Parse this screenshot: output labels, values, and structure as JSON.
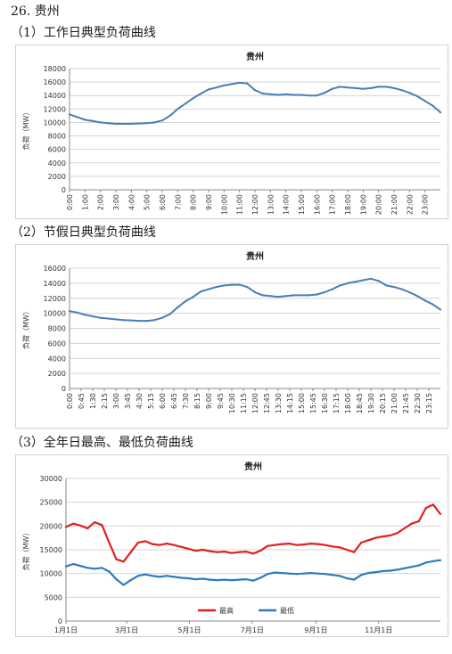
{
  "section_heading": "26. 贵州",
  "chart_captions": [
    "（1）工作日典型负荷曲线",
    "（2）节假日典型负荷曲线",
    "（3）全年日最高、最低负荷曲线"
  ],
  "colors": {
    "workday_line": "#4a7eb5",
    "holiday_line": "#4a7eb5",
    "annual_max": "#e02020",
    "annual_min": "#2b7bbf",
    "grid": "#d4d4d4"
  },
  "chart_data": [
    {
      "type": "line",
      "title": "贵州",
      "ylabel": "负荷（MW）",
      "xlabel": "",
      "ylim": [
        0,
        18000
      ],
      "yticks": [
        0,
        2000,
        4000,
        6000,
        8000,
        10000,
        12000,
        14000,
        16000,
        18000
      ],
      "xlim": [
        0,
        24
      ],
      "xtick_labels": [
        "0:00",
        "1:00",
        "2:00",
        "3:00",
        "4:00",
        "5:00",
        "6:00",
        "7:00",
        "8:00",
        "9:00",
        "10:00",
        "11:00",
        "12:00",
        "13:00",
        "14:00",
        "15:00",
        "16:00",
        "17:00",
        "18:00",
        "19:00",
        "20:00",
        "21:00",
        "22:00",
        "23:00"
      ],
      "grid": "horizontal",
      "legend": "none",
      "series": [
        {
          "x": [
            0,
            0.5,
            1,
            1.5,
            2,
            2.5,
            3,
            3.5,
            4,
            4.5,
            5,
            5.5,
            6,
            6.5,
            7,
            7.5,
            8,
            8.5,
            9,
            9.5,
            10,
            10.5,
            11,
            11.5,
            12,
            12.5,
            13,
            13.5,
            14,
            14.5,
            15,
            15.5,
            16,
            16.5,
            17,
            17.5,
            18,
            18.5,
            19,
            19.5,
            20,
            20.5,
            21,
            21.5,
            22,
            22.5,
            23,
            23.5,
            24
          ],
          "y": [
            11200,
            10800,
            10400,
            10200,
            10000,
            9900,
            9800,
            9800,
            9800,
            9850,
            9900,
            10000,
            10300,
            11000,
            12000,
            12800,
            13600,
            14300,
            14900,
            15200,
            15500,
            15700,
            15900,
            15800,
            14800,
            14300,
            14200,
            14100,
            14200,
            14100,
            14100,
            14000,
            14000,
            14400,
            15000,
            15300,
            15200,
            15100,
            15000,
            15100,
            15300,
            15300,
            15100,
            14800,
            14400,
            13900,
            13200,
            12500,
            11500
          ]
        }
      ]
    },
    {
      "type": "line",
      "title": "贵州",
      "ylabel": "负荷（MW）",
      "xlabel": "",
      "ylim": [
        0,
        16000
      ],
      "yticks": [
        0,
        2000,
        4000,
        6000,
        8000,
        10000,
        12000,
        14000,
        16000
      ],
      "xlim": [
        0,
        24
      ],
      "xtick_labels": [
        "0:00",
        "0:45",
        "1:30",
        "2:15",
        "3:00",
        "3:45",
        "4:30",
        "5:15",
        "6:00",
        "6:45",
        "7:30",
        "8:15",
        "9:00",
        "9:45",
        "10:30",
        "11:15",
        "12:00",
        "12:45",
        "13:30",
        "14:15",
        "15:00",
        "15:45",
        "16:30",
        "17:15",
        "18:00",
        "18:45",
        "19:30",
        "20:15",
        "21:00",
        "21:45",
        "22:30",
        "23:15"
      ],
      "grid": "horizontal",
      "legend": "none",
      "series": [
        {
          "x": [
            0,
            0.5,
            1,
            1.5,
            2,
            2.5,
            3,
            3.5,
            4,
            4.5,
            5,
            5.5,
            6,
            6.5,
            7,
            7.5,
            8,
            8.5,
            9,
            9.5,
            10,
            10.5,
            11,
            11.5,
            12,
            12.5,
            13,
            13.5,
            14,
            14.5,
            15,
            15.5,
            16,
            16.5,
            17,
            17.5,
            18,
            18.5,
            19,
            19.5,
            20,
            20.5,
            21,
            21.5,
            22,
            22.5,
            23,
            23.5,
            24
          ],
          "y": [
            10300,
            10100,
            9800,
            9600,
            9400,
            9300,
            9200,
            9100,
            9050,
            9000,
            9000,
            9100,
            9400,
            9900,
            10800,
            11600,
            12200,
            12900,
            13200,
            13500,
            13700,
            13800,
            13800,
            13500,
            12800,
            12400,
            12300,
            12200,
            12300,
            12400,
            12400,
            12400,
            12500,
            12800,
            13200,
            13700,
            14000,
            14200,
            14400,
            14600,
            14300,
            13700,
            13500,
            13200,
            12800,
            12300,
            11700,
            11200,
            10500
          ]
        }
      ]
    },
    {
      "type": "line",
      "title": "贵州",
      "ylabel": "负荷（MW）",
      "xlabel": "",
      "ylim": [
        0,
        30000
      ],
      "yticks": [
        0,
        5000,
        10000,
        15000,
        20000,
        25000,
        30000
      ],
      "xlim": [
        1,
        365
      ],
      "xticks": [
        1,
        60,
        121,
        182,
        244,
        305
      ],
      "xtick_labels": [
        "1月1日",
        "3月1日",
        "5月1日",
        "7月1日",
        "9月1日",
        "11月1日"
      ],
      "grid": "horizontal",
      "legend": "bottom-center",
      "series": [
        {
          "name": "最高",
          "x": [
            1,
            8,
            15,
            22,
            29,
            36,
            43,
            50,
            57,
            64,
            71,
            78,
            85,
            92,
            99,
            106,
            113,
            120,
            127,
            134,
            141,
            148,
            155,
            162,
            169,
            176,
            183,
            190,
            197,
            204,
            211,
            218,
            225,
            232,
            239,
            246,
            253,
            260,
            267,
            274,
            281,
            288,
            295,
            302,
            309,
            316,
            323,
            330,
            337,
            344,
            351,
            358,
            365
          ],
          "y": [
            19800,
            20500,
            20100,
            19500,
            20800,
            20200,
            16500,
            13000,
            12500,
            14500,
            16500,
            16800,
            16200,
            16000,
            16300,
            16000,
            15600,
            15200,
            14800,
            15000,
            14700,
            14500,
            14600,
            14300,
            14500,
            14600,
            14200,
            14800,
            15800,
            16000,
            16200,
            16300,
            16000,
            16100,
            16300,
            16200,
            16000,
            15700,
            15500,
            15000,
            14500,
            16500,
            17000,
            17500,
            17800,
            18000,
            18500,
            19500,
            20500,
            21000,
            23800,
            24500,
            22500
          ]
        },
        {
          "name": "最低",
          "x": [
            1,
            8,
            15,
            22,
            29,
            36,
            43,
            50,
            57,
            64,
            71,
            78,
            85,
            92,
            99,
            106,
            113,
            120,
            127,
            134,
            141,
            148,
            155,
            162,
            169,
            176,
            183,
            190,
            197,
            204,
            211,
            218,
            225,
            232,
            239,
            246,
            253,
            260,
            267,
            274,
            281,
            288,
            295,
            302,
            309,
            316,
            323,
            330,
            337,
            344,
            351,
            358,
            365
          ],
          "y": [
            11500,
            12000,
            11600,
            11200,
            11000,
            11200,
            10400,
            8800,
            7600,
            8600,
            9500,
            9800,
            9500,
            9300,
            9500,
            9300,
            9100,
            9000,
            8800,
            8900,
            8700,
            8600,
            8700,
            8600,
            8700,
            8800,
            8500,
            9100,
            9900,
            10200,
            10100,
            10000,
            9900,
            10000,
            10100,
            10000,
            9900,
            9700,
            9500,
            9000,
            8700,
            9700,
            10100,
            10300,
            10500,
            10600,
            10800,
            11100,
            11400,
            11700,
            12300,
            12600,
            12800
          ]
        }
      ]
    }
  ]
}
